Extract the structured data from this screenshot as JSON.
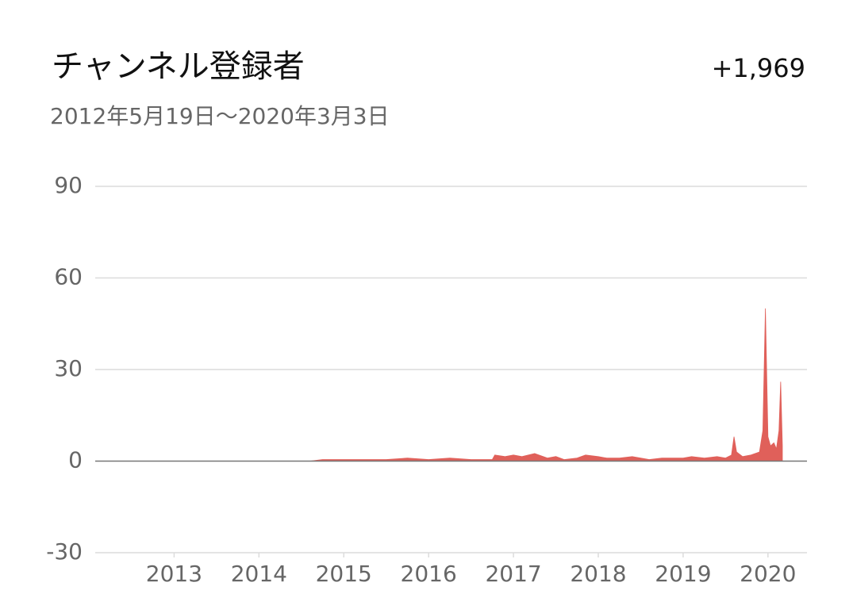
{
  "chart_data": {
    "type": "area",
    "title": "チャンネル登録者",
    "total": "+1,969",
    "subtitle": "2012年5月19日〜2020年3月3日",
    "color": "#e0605a",
    "grid": true,
    "x": [
      2012.38,
      2014.6,
      2014.75,
      2015.0,
      2015.25,
      2015.5,
      2015.75,
      2016.0,
      2016.25,
      2016.5,
      2016.75,
      2016.78,
      2016.9,
      2017.0,
      2017.1,
      2017.25,
      2017.4,
      2017.5,
      2017.6,
      2017.75,
      2017.85,
      2018.0,
      2018.1,
      2018.25,
      2018.4,
      2018.5,
      2018.6,
      2018.75,
      2018.9,
      2019.0,
      2019.1,
      2019.25,
      2019.4,
      2019.5,
      2019.57,
      2019.6,
      2019.63,
      2019.7,
      2019.8,
      2019.9,
      2019.94,
      2019.97,
      2020.0,
      2020.03,
      2020.07,
      2020.1,
      2020.13,
      2020.15,
      2020.17
    ],
    "values": [
      0,
      0,
      0.5,
      0.5,
      0.5,
      0.5,
      1,
      0.5,
      1,
      0.5,
      0.5,
      2,
      1.5,
      2,
      1.5,
      2.5,
      1,
      1.5,
      0.5,
      1,
      2,
      1.5,
      1,
      1,
      1.5,
      1,
      0.5,
      1,
      1,
      1,
      1.5,
      1,
      1.5,
      1,
      2,
      8,
      3,
      1.5,
      2,
      3,
      10,
      50,
      8,
      5,
      6,
      4,
      10,
      26,
      5
    ],
    "xlim": [
      2012.07,
      2020.46
    ],
    "xticks": [
      2013,
      2014,
      2015,
      2016,
      2017,
      2018,
      2019,
      2020
    ],
    "ylim": [
      -30,
      90
    ],
    "yticks": [
      -30,
      0,
      30,
      60,
      90
    ]
  }
}
